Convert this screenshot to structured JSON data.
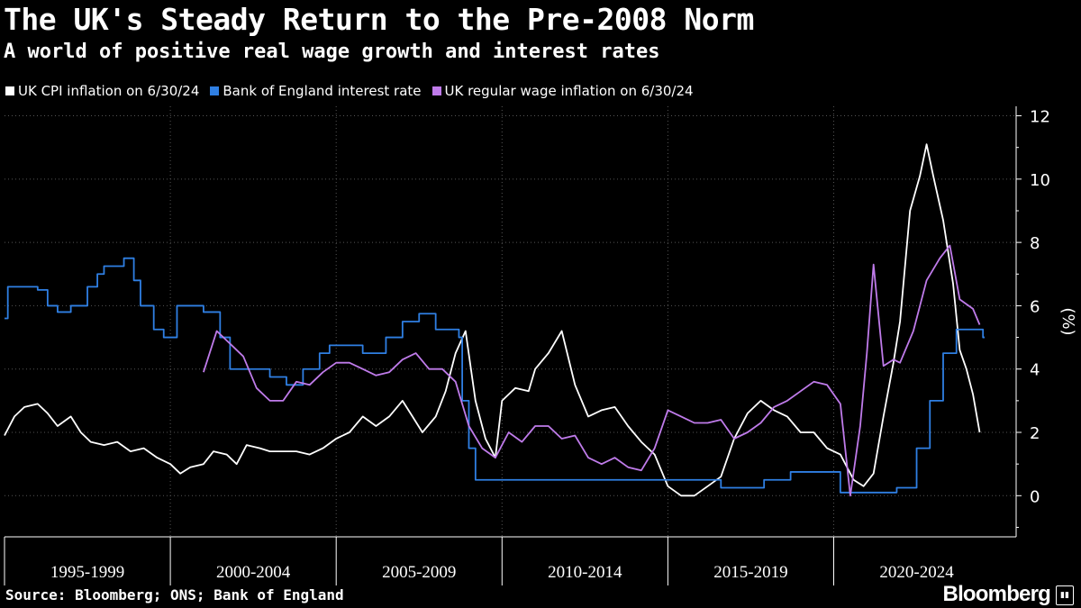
{
  "chart_data": {
    "type": "line",
    "title": "The UK's Steady Return to the Pre-2008 Norm",
    "subtitle": "A world of positive real wage growth and interest rates",
    "ylabel": "(%)",
    "ylim": [
      -1.3,
      12.3
    ],
    "yticks": [
      0,
      2,
      4,
      6,
      8,
      10,
      12
    ],
    "xlim": [
      1995,
      2025.5
    ],
    "period_labels": [
      {
        "label": "1995-1999",
        "center": 1997.5
      },
      {
        "label": "2000-2004",
        "center": 2002.5
      },
      {
        "label": "2005-2009",
        "center": 2007.5
      },
      {
        "label": "2010-2014",
        "center": 2012.5
      },
      {
        "label": "2015-2019",
        "center": 2017.5
      },
      {
        "label": "2020-2024",
        "center": 2022.5
      }
    ],
    "period_dividers": [
      2000,
      2005,
      2010,
      2015,
      2020
    ],
    "legend_position": "top-left",
    "source": "Source: Bloomberg; ONS; Bank of England",
    "brand": "Bloomberg",
    "series": [
      {
        "name": "UK CPI inflation on 6/30/24",
        "color": "#ffffff",
        "points": [
          [
            1995.0,
            1.9
          ],
          [
            1995.3,
            2.5
          ],
          [
            1995.6,
            2.8
          ],
          [
            1996.0,
            2.9
          ],
          [
            1996.3,
            2.6
          ],
          [
            1996.6,
            2.2
          ],
          [
            1997.0,
            2.5
          ],
          [
            1997.3,
            2.0
          ],
          [
            1997.6,
            1.7
          ],
          [
            1998.0,
            1.6
          ],
          [
            1998.4,
            1.7
          ],
          [
            1998.8,
            1.4
          ],
          [
            1999.2,
            1.5
          ],
          [
            1999.6,
            1.2
          ],
          [
            2000.0,
            1.0
          ],
          [
            2000.3,
            0.7
          ],
          [
            2000.6,
            0.9
          ],
          [
            2001.0,
            1.0
          ],
          [
            2001.3,
            1.4
          ],
          [
            2001.7,
            1.3
          ],
          [
            2002.0,
            1.0
          ],
          [
            2002.3,
            1.6
          ],
          [
            2002.7,
            1.5
          ],
          [
            2003.0,
            1.4
          ],
          [
            2003.4,
            1.4
          ],
          [
            2003.8,
            1.4
          ],
          [
            2004.2,
            1.3
          ],
          [
            2004.6,
            1.5
          ],
          [
            2005.0,
            1.8
          ],
          [
            2005.4,
            2.0
          ],
          [
            2005.8,
            2.5
          ],
          [
            2006.2,
            2.2
          ],
          [
            2006.6,
            2.5
          ],
          [
            2007.0,
            3.0
          ],
          [
            2007.3,
            2.5
          ],
          [
            2007.6,
            2.0
          ],
          [
            2008.0,
            2.5
          ],
          [
            2008.3,
            3.3
          ],
          [
            2008.6,
            4.5
          ],
          [
            2008.9,
            5.2
          ],
          [
            2009.2,
            3.0
          ],
          [
            2009.5,
            1.8
          ],
          [
            2009.8,
            1.2
          ],
          [
            2010.0,
            3.0
          ],
          [
            2010.4,
            3.4
          ],
          [
            2010.8,
            3.3
          ],
          [
            2011.0,
            4.0
          ],
          [
            2011.4,
            4.5
          ],
          [
            2011.8,
            5.2
          ],
          [
            2012.2,
            3.5
          ],
          [
            2012.6,
            2.5
          ],
          [
            2013.0,
            2.7
          ],
          [
            2013.4,
            2.8
          ],
          [
            2013.8,
            2.2
          ],
          [
            2014.2,
            1.7
          ],
          [
            2014.6,
            1.3
          ],
          [
            2015.0,
            0.3
          ],
          [
            2015.4,
            0.0
          ],
          [
            2015.8,
            0.0
          ],
          [
            2016.2,
            0.3
          ],
          [
            2016.6,
            0.6
          ],
          [
            2017.0,
            1.8
          ],
          [
            2017.4,
            2.6
          ],
          [
            2017.8,
            3.0
          ],
          [
            2018.2,
            2.7
          ],
          [
            2018.6,
            2.5
          ],
          [
            2019.0,
            2.0
          ],
          [
            2019.4,
            2.0
          ],
          [
            2019.8,
            1.5
          ],
          [
            2020.2,
            1.3
          ],
          [
            2020.6,
            0.5
          ],
          [
            2020.9,
            0.3
          ],
          [
            2021.2,
            0.7
          ],
          [
            2021.5,
            2.5
          ],
          [
            2021.8,
            4.2
          ],
          [
            2022.0,
            5.5
          ],
          [
            2022.3,
            9.0
          ],
          [
            2022.6,
            10.1
          ],
          [
            2022.8,
            11.1
          ],
          [
            2023.0,
            10.1
          ],
          [
            2023.3,
            8.7
          ],
          [
            2023.6,
            6.7
          ],
          [
            2023.8,
            4.6
          ],
          [
            2024.0,
            4.0
          ],
          [
            2024.2,
            3.2
          ],
          [
            2024.4,
            2.0
          ]
        ]
      },
      {
        "name": "Bank of England interest rate",
        "color": "#2f7fe3",
        "points": [
          [
            1995.0,
            5.6
          ],
          [
            1995.1,
            6.6
          ],
          [
            1996.0,
            6.5
          ],
          [
            1996.3,
            6.0
          ],
          [
            1996.6,
            5.8
          ],
          [
            1997.0,
            6.0
          ],
          [
            1997.5,
            6.6
          ],
          [
            1997.8,
            7.0
          ],
          [
            1998.0,
            7.25
          ],
          [
            1998.6,
            7.5
          ],
          [
            1998.9,
            6.8
          ],
          [
            1999.1,
            6.0
          ],
          [
            1999.5,
            5.25
          ],
          [
            1999.8,
            5.0
          ],
          [
            2000.2,
            6.0
          ],
          [
            2001.0,
            5.8
          ],
          [
            2001.5,
            5.0
          ],
          [
            2001.8,
            4.0
          ],
          [
            2003.0,
            3.75
          ],
          [
            2003.5,
            3.5
          ],
          [
            2004.0,
            4.0
          ],
          [
            2004.5,
            4.5
          ],
          [
            2004.8,
            4.75
          ],
          [
            2005.8,
            4.5
          ],
          [
            2006.5,
            5.0
          ],
          [
            2007.0,
            5.5
          ],
          [
            2007.5,
            5.75
          ],
          [
            2008.0,
            5.25
          ],
          [
            2008.7,
            5.0
          ],
          [
            2008.8,
            3.0
          ],
          [
            2009.0,
            1.5
          ],
          [
            2009.2,
            0.5
          ],
          [
            2016.6,
            0.25
          ],
          [
            2017.9,
            0.5
          ],
          [
            2018.7,
            0.75
          ],
          [
            2020.2,
            0.1
          ],
          [
            2021.9,
            0.25
          ],
          [
            2022.5,
            1.5
          ],
          [
            2022.9,
            3.0
          ],
          [
            2023.3,
            4.5
          ],
          [
            2023.7,
            5.25
          ],
          [
            2024.5,
            5.0
          ]
        ]
      },
      {
        "name": "UK regular wage inflation on 6/30/24",
        "color": "#bf7bea",
        "points": [
          [
            2001.0,
            3.9
          ],
          [
            2001.4,
            5.2
          ],
          [
            2001.8,
            4.8
          ],
          [
            2002.2,
            4.4
          ],
          [
            2002.6,
            3.4
          ],
          [
            2003.0,
            3.0
          ],
          [
            2003.4,
            3.0
          ],
          [
            2003.8,
            3.6
          ],
          [
            2004.2,
            3.5
          ],
          [
            2004.6,
            3.9
          ],
          [
            2005.0,
            4.2
          ],
          [
            2005.4,
            4.2
          ],
          [
            2005.8,
            4.0
          ],
          [
            2006.2,
            3.8
          ],
          [
            2006.6,
            3.9
          ],
          [
            2007.0,
            4.3
          ],
          [
            2007.4,
            4.5
          ],
          [
            2007.8,
            4.0
          ],
          [
            2008.2,
            4.0
          ],
          [
            2008.6,
            3.6
          ],
          [
            2009.0,
            2.2
          ],
          [
            2009.4,
            1.5
          ],
          [
            2009.8,
            1.2
          ],
          [
            2010.2,
            2.0
          ],
          [
            2010.6,
            1.7
          ],
          [
            2011.0,
            2.2
          ],
          [
            2011.4,
            2.2
          ],
          [
            2011.8,
            1.8
          ],
          [
            2012.2,
            1.9
          ],
          [
            2012.6,
            1.2
          ],
          [
            2013.0,
            1.0
          ],
          [
            2013.4,
            1.2
          ],
          [
            2013.8,
            0.9
          ],
          [
            2014.2,
            0.8
          ],
          [
            2014.6,
            1.5
          ],
          [
            2015.0,
            2.7
          ],
          [
            2015.4,
            2.5
          ],
          [
            2015.8,
            2.3
          ],
          [
            2016.2,
            2.3
          ],
          [
            2016.6,
            2.4
          ],
          [
            2017.0,
            1.8
          ],
          [
            2017.4,
            2.0
          ],
          [
            2017.8,
            2.3
          ],
          [
            2018.2,
            2.8
          ],
          [
            2018.6,
            3.0
          ],
          [
            2019.0,
            3.3
          ],
          [
            2019.4,
            3.6
          ],
          [
            2019.8,
            3.5
          ],
          [
            2020.2,
            2.9
          ],
          [
            2020.5,
            0.0
          ],
          [
            2020.8,
            2.2
          ],
          [
            2021.0,
            4.5
          ],
          [
            2021.2,
            7.3
          ],
          [
            2021.5,
            4.1
          ],
          [
            2021.8,
            4.3
          ],
          [
            2022.0,
            4.2
          ],
          [
            2022.4,
            5.2
          ],
          [
            2022.8,
            6.8
          ],
          [
            2023.2,
            7.5
          ],
          [
            2023.5,
            7.9
          ],
          [
            2023.8,
            6.2
          ],
          [
            2024.2,
            5.9
          ],
          [
            2024.4,
            5.4
          ]
        ]
      }
    ]
  }
}
